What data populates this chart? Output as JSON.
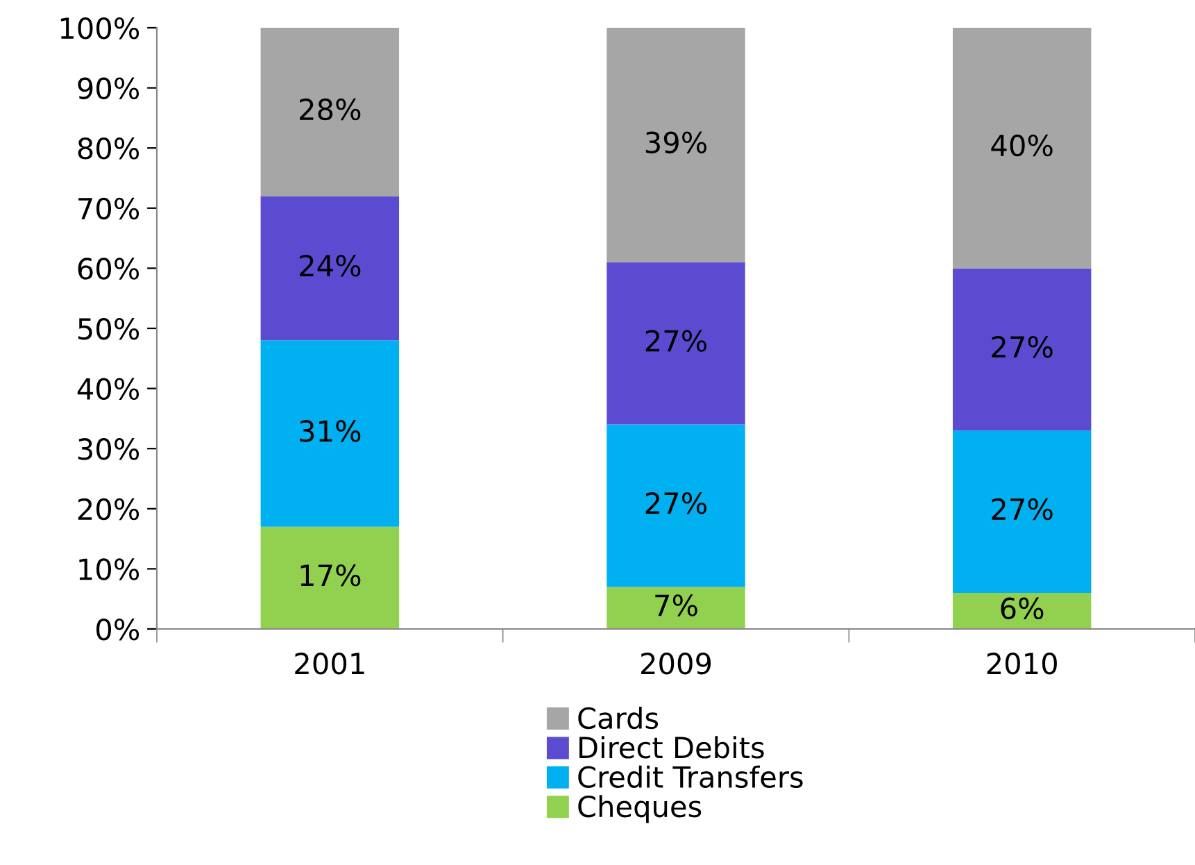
{
  "chart_data": {
    "type": "bar",
    "stacked": true,
    "categories": [
      "2001",
      "2009",
      "2010"
    ],
    "series": [
      {
        "name": "Cheques",
        "color": "#92d050",
        "values": [
          17,
          7,
          6
        ],
        "value_labels": [
          "17%",
          "7%",
          "6%"
        ]
      },
      {
        "name": "Credit Transfers",
        "color": "#00b0f0",
        "values": [
          31,
          27,
          27
        ],
        "value_labels": [
          "31%",
          "27%",
          "27%"
        ]
      },
      {
        "name": "Direct Debits",
        "color": "#5b4bd1",
        "values": [
          24,
          27,
          27
        ],
        "value_labels": [
          "24%",
          "27%",
          "27%"
        ]
      },
      {
        "name": "Cards",
        "color": "#a6a6a6",
        "values": [
          28,
          39,
          40
        ],
        "value_labels": [
          "28%",
          "39%",
          "40%"
        ]
      }
    ],
    "ylim": [
      0,
      100
    ],
    "yticks": [
      {
        "value": 0,
        "label": "0%"
      },
      {
        "value": 10,
        "label": "10%"
      },
      {
        "value": 20,
        "label": "20%"
      },
      {
        "value": 30,
        "label": "30%"
      },
      {
        "value": 40,
        "label": "40%"
      },
      {
        "value": 50,
        "label": "50%"
      },
      {
        "value": 60,
        "label": "60%"
      },
      {
        "value": 70,
        "label": "70%"
      },
      {
        "value": 80,
        "label": "80%"
      },
      {
        "value": 90,
        "label": "90%"
      },
      {
        "value": 100,
        "label": "100%"
      }
    ],
    "grid": false,
    "legend": "bottom"
  }
}
